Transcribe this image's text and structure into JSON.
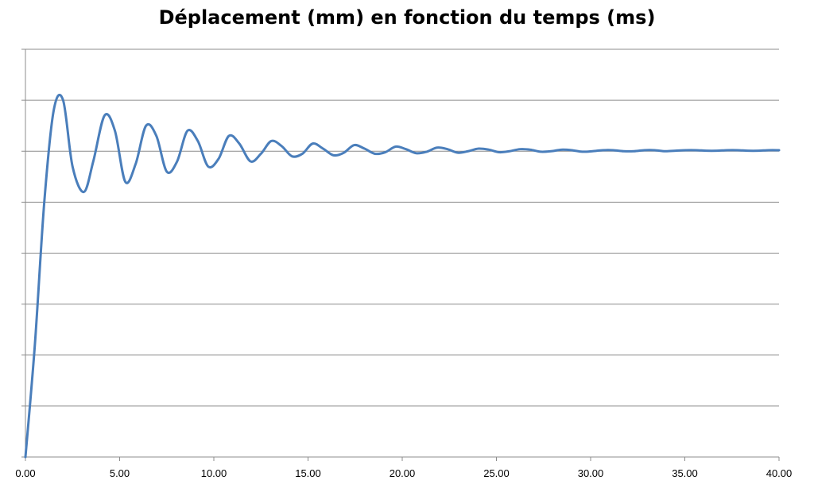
{
  "chart_data": {
    "type": "line",
    "title": "Déplacement (mm) en fonction du temps (ms)",
    "xlabel": "",
    "ylabel": "",
    "xlim": [
      0,
      40
    ],
    "ylim": [
      0,
      8
    ],
    "x_tick_labels": [
      "0.00",
      "5.00",
      "10.00",
      "15.00",
      "20.00",
      "25.00",
      "30.00",
      "35.00",
      "40.00"
    ],
    "y_ticks_labeled": false,
    "grid": "horizontal",
    "legend": "none",
    "series": [
      {
        "color": "#4a7ebb",
        "x": [
          0,
          0.5,
          1.0,
          1.5,
          2.0,
          2.5,
          3.1,
          3.6,
          4.2,
          4.75,
          5.3,
          5.85,
          6.4,
          6.95,
          7.5,
          8.05,
          8.6,
          9.15,
          9.7,
          10.25,
          10.8,
          11.35,
          11.95,
          12.5,
          13.05,
          13.6,
          14.15,
          14.7,
          15.25,
          15.8,
          16.35,
          16.9,
          17.45,
          18.0,
          18.55,
          19.1,
          19.65,
          20.2,
          20.75,
          21.3,
          21.85,
          22.4,
          22.95,
          23.5,
          24.05,
          24.6,
          25.15,
          25.7,
          26.25,
          26.8,
          27.35,
          27.9,
          28.45,
          29.0,
          29.55,
          30.1,
          30.65,
          31.2,
          31.75,
          32.3,
          32.85,
          33.4,
          33.95,
          34.5,
          35.05,
          35.6,
          36.15,
          36.7,
          37.25,
          37.8,
          38.35,
          38.9,
          39.45,
          40.0
        ],
        "y": [
          0.0,
          2.2,
          5.0,
          6.8,
          7.0,
          5.7,
          5.2,
          5.8,
          6.7,
          6.4,
          5.4,
          5.75,
          6.5,
          6.3,
          5.6,
          5.8,
          6.4,
          6.2,
          5.7,
          5.85,
          6.3,
          6.15,
          5.8,
          5.95,
          6.2,
          6.1,
          5.9,
          5.95,
          6.15,
          6.05,
          5.92,
          5.97,
          6.12,
          6.05,
          5.95,
          5.98,
          6.09,
          6.04,
          5.96,
          5.99,
          6.07,
          6.04,
          5.97,
          6.0,
          6.05,
          6.03,
          5.98,
          6.0,
          6.04,
          6.03,
          5.99,
          6.0,
          6.03,
          6.02,
          5.99,
          6.0,
          6.02,
          6.02,
          6.0,
          6.0,
          6.02,
          6.02,
          6.0,
          6.01,
          6.02,
          6.02,
          6.01,
          6.01,
          6.02,
          6.02,
          6.01,
          6.01,
          6.02,
          6.02
        ]
      }
    ]
  }
}
